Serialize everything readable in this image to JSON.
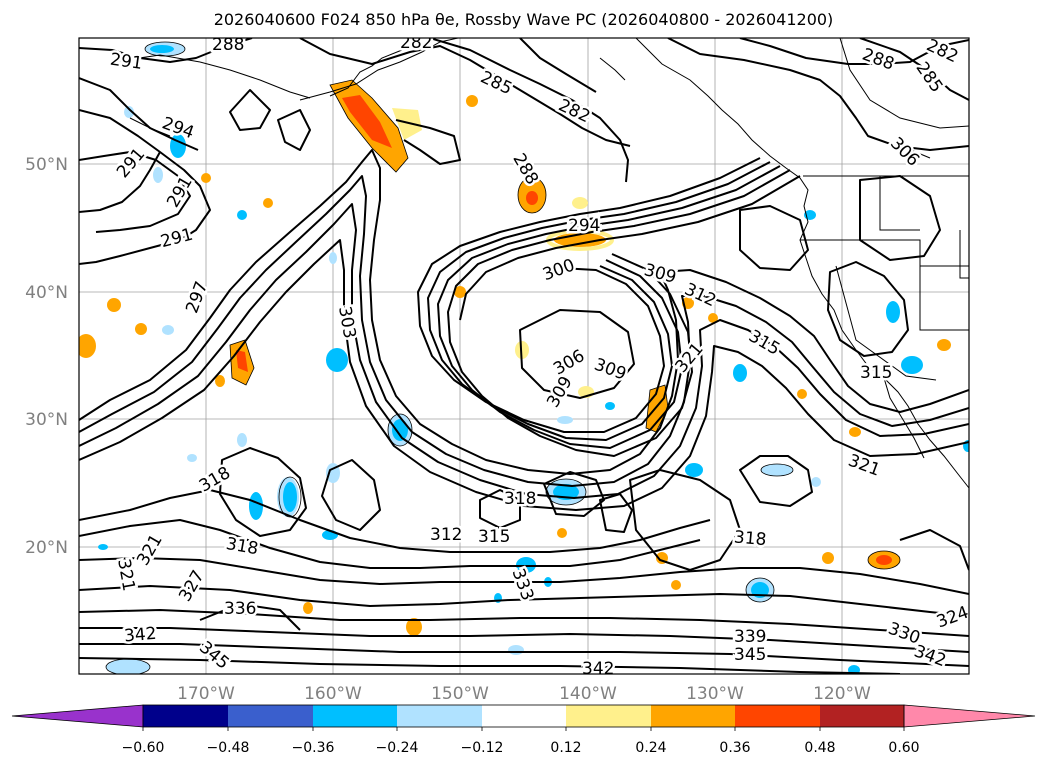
{
  "title": "2026040600 F024 850 hPa θe, Rossby Wave PC (2026040800 - 2026041200)",
  "map": {
    "lat_labels": [
      "50°N",
      "40°N",
      "30°N",
      "20°N"
    ],
    "lon_labels": [
      "170°W",
      "160°W",
      "150°W",
      "140°W",
      "130°W",
      "120°W"
    ],
    "contour_labels": [
      {
        "text": "291"
      },
      {
        "text": "288"
      },
      {
        "text": "282"
      },
      {
        "text": "285"
      },
      {
        "text": "282"
      },
      {
        "text": "288"
      },
      {
        "text": "282"
      },
      {
        "text": "285"
      },
      {
        "text": "306"
      },
      {
        "text": "294"
      },
      {
        "text": "291"
      },
      {
        "text": "291"
      },
      {
        "text": "291"
      },
      {
        "text": "297"
      },
      {
        "text": "288"
      },
      {
        "text": "294"
      },
      {
        "text": "300"
      },
      {
        "text": "309"
      },
      {
        "text": "312"
      },
      {
        "text": "303"
      },
      {
        "text": "306"
      },
      {
        "text": "309"
      },
      {
        "text": "309"
      },
      {
        "text": "321"
      },
      {
        "text": "315"
      },
      {
        "text": "315"
      },
      {
        "text": "321"
      },
      {
        "text": "318"
      },
      {
        "text": "318"
      },
      {
        "text": "318"
      },
      {
        "text": "312"
      },
      {
        "text": "315"
      },
      {
        "text": "318"
      },
      {
        "text": "321"
      },
      {
        "text": "321"
      },
      {
        "text": "327"
      },
      {
        "text": "333"
      },
      {
        "text": "336"
      },
      {
        "text": "342"
      },
      {
        "text": "345"
      },
      {
        "text": "339"
      },
      {
        "text": "345"
      },
      {
        "text": "330"
      },
      {
        "text": "324"
      },
      {
        "text": "342"
      },
      {
        "text": "342"
      }
    ]
  },
  "colorbar": {
    "colors": [
      "#9932cc",
      "#00008b",
      "#3a5fcd",
      "#00bfff",
      "#b0e2ff",
      "#ffffff",
      "#fff08c",
      "#ffa500",
      "#ff4500",
      "#b22222",
      "#ff88aa"
    ],
    "ticks": [
      "−0.60",
      "−0.48",
      "−0.36",
      "−0.24",
      "−0.12",
      "0.12",
      "0.24",
      "0.36",
      "0.48",
      "0.60"
    ]
  }
}
